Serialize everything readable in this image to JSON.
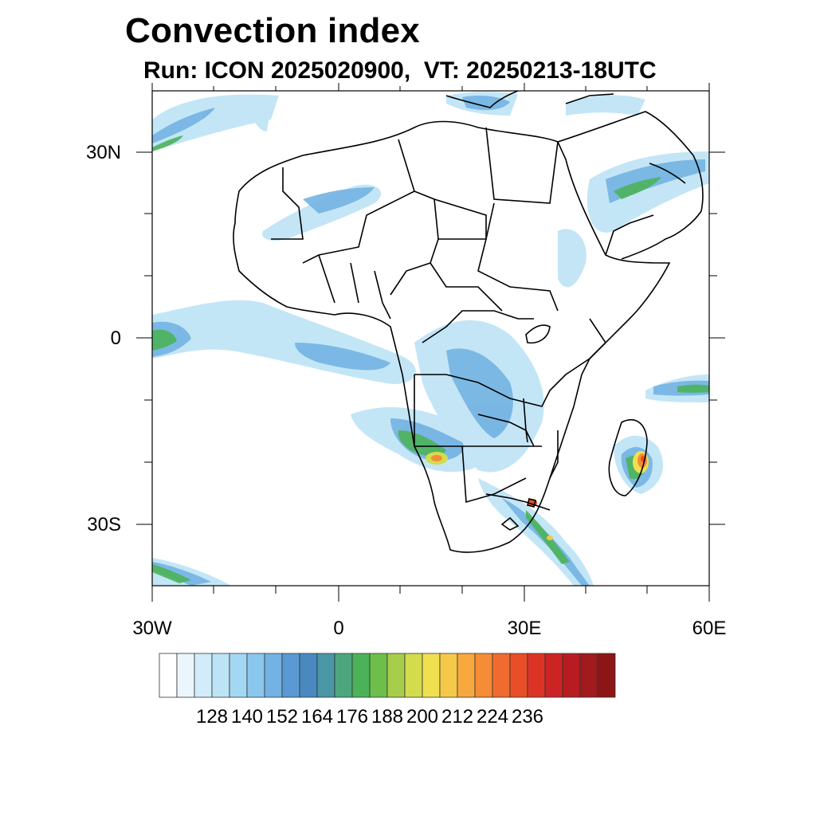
{
  "title": "Convection index",
  "subtitle": "Run: ICON 2025020900,  VT: 20250213-18UTC",
  "axes": {
    "lat_labels": [
      "30N",
      "0",
      "30S"
    ],
    "lon_labels": [
      "30W",
      "0",
      "30E",
      "60E"
    ]
  },
  "colorbar": {
    "labels": [
      "128",
      "140",
      "152",
      "164",
      "176",
      "188",
      "200",
      "212",
      "224",
      "236"
    ],
    "colors": [
      "#ffffff",
      "#eaf6fc",
      "#d2ecf9",
      "#bde3f6",
      "#a3d8f3",
      "#8ac7ed",
      "#73b2e2",
      "#5a99d3",
      "#4a89c0",
      "#4a97a6",
      "#4ea67e",
      "#4cb25a",
      "#6ebe4c",
      "#a8cc4c",
      "#d2dc4c",
      "#f0e050",
      "#f6c84a",
      "#f7a83e",
      "#f58c36",
      "#ef6c2e",
      "#e84e28",
      "#dc3424",
      "#cc2424",
      "#b81c22",
      "#a01a1e",
      "#8c1616"
    ]
  }
}
